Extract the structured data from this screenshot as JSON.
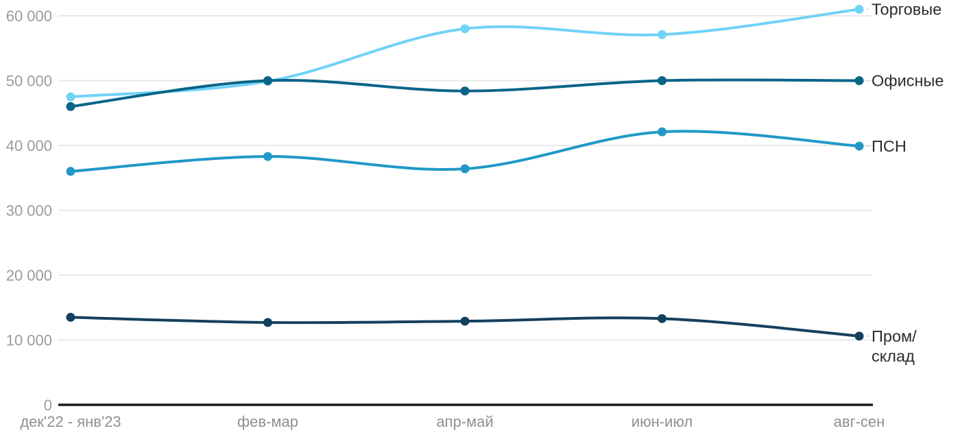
{
  "chart_data": {
    "type": "line",
    "title": "",
    "xlabel": "",
    "ylabel": "",
    "categories": [
      "дек'22 - янв'23",
      "фев-мар",
      "апр-май",
      "июн-июл",
      "авг-сен"
    ],
    "series": [
      {
        "name": "Торговые",
        "color": "#71D2F7",
        "values": [
          47500,
          49900,
          58000,
          57100,
          61000
        ],
        "label_lines": [
          "Торговые"
        ]
      },
      {
        "name": "Офисные",
        "color": "#0B6488",
        "values": [
          46000,
          50000,
          48400,
          50000,
          50000
        ],
        "label_lines": [
          "Офисные"
        ]
      },
      {
        "name": "ПСН",
        "color": "#2198C7",
        "values": [
          36000,
          38300,
          36400,
          42100,
          39900
        ],
        "label_lines": [
          "ПСН"
        ]
      },
      {
        "name": "Пром/склад",
        "color": "#14405F",
        "values": [
          13500,
          12700,
          12900,
          13300,
          10600
        ],
        "label_lines": [
          "Пром/",
          "склад"
        ]
      }
    ],
    "ylim": [
      0,
      61000
    ],
    "yticks": [
      0,
      10000,
      20000,
      30000,
      40000,
      50000,
      60000
    ],
    "ytick_labels": [
      "0",
      "10 000",
      "20 000",
      "30 000",
      "40 000",
      "50 000",
      "60 000"
    ],
    "grid": "horizontal",
    "legend_position": "right-end-labels"
  },
  "style": {
    "background": "#FFFFFF",
    "grid_color": "#E9E9E9",
    "axis_color": "#1A1A1A",
    "ytick_color": "#9B9B9B",
    "xtick_color": "#8F8F8F",
    "series_label_color": "#2B2B2B",
    "leader_color": "#DCDCDC"
  }
}
